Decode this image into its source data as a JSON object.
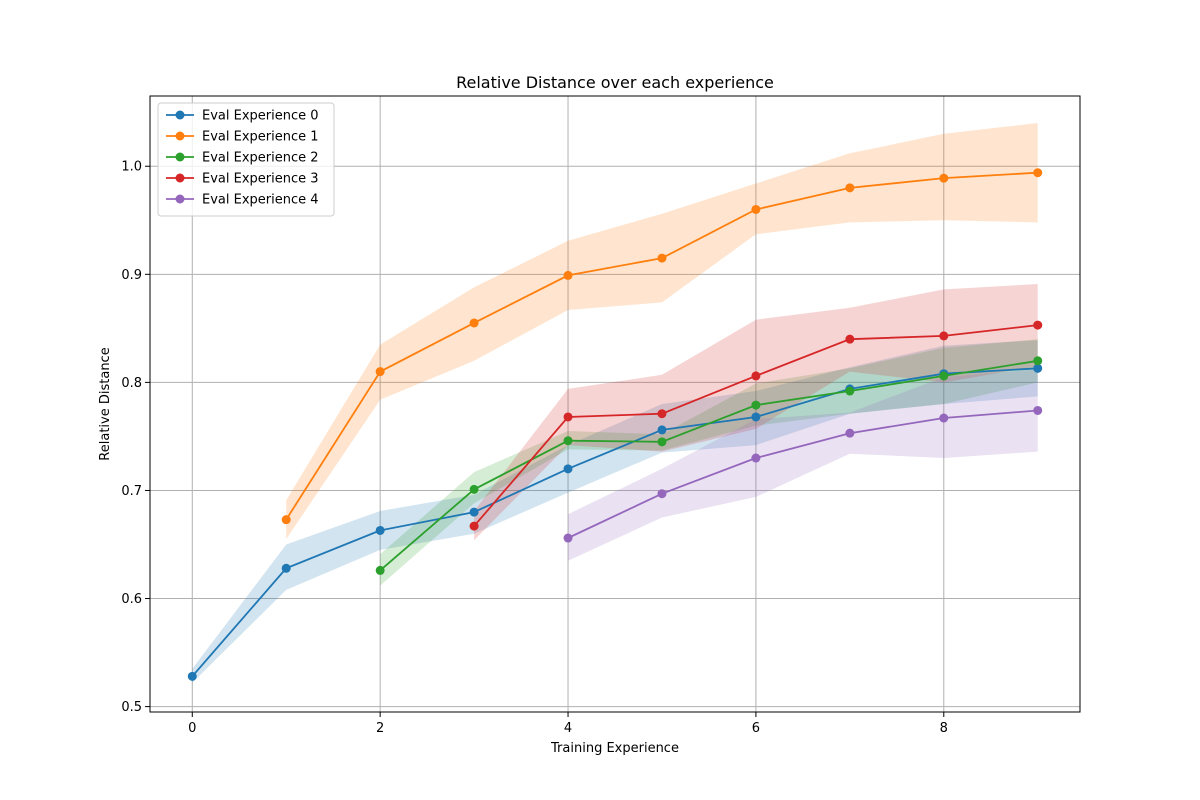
{
  "chart_data": {
    "type": "line",
    "title": "Relative Distance over each experience",
    "xlabel": "Training Experience",
    "ylabel": "Relative Distance",
    "xlim": [
      -0.45,
      9.45
    ],
    "ylim": [
      0.495,
      1.065
    ],
    "xticks": [
      0,
      2,
      4,
      6,
      8
    ],
    "yticks": [
      0.5,
      0.6,
      0.7,
      0.8,
      0.9,
      1.0
    ],
    "xtick_labels": [
      "0",
      "2",
      "4",
      "6",
      "8"
    ],
    "ytick_labels": [
      "0.5",
      "0.6",
      "0.7",
      "0.8",
      "0.9",
      "1.0"
    ],
    "grid": true,
    "legend_position": "upper-left",
    "series": [
      {
        "name": "Eval Experience 0",
        "color": "#1f77b4",
        "x": [
          0,
          1,
          2,
          3,
          4,
          5,
          6,
          7,
          8,
          9
        ],
        "y": [
          0.528,
          0.628,
          0.663,
          0.68,
          0.72,
          0.756,
          0.768,
          0.794,
          0.808,
          0.813
        ],
        "lower": [
          0.522,
          0.608,
          0.645,
          0.66,
          0.698,
          0.735,
          0.742,
          0.771,
          0.78,
          0.787
        ],
        "upper": [
          0.535,
          0.65,
          0.681,
          0.696,
          0.742,
          0.78,
          0.792,
          0.814,
          0.834,
          0.839
        ]
      },
      {
        "name": "Eval Experience 1",
        "color": "#ff7f0e",
        "x": [
          1,
          2,
          3,
          4,
          5,
          6,
          7,
          8,
          9
        ],
        "y": [
          0.673,
          0.81,
          0.855,
          0.899,
          0.915,
          0.96,
          0.98,
          0.989,
          0.994
        ],
        "lower": [
          0.655,
          0.784,
          0.82,
          0.867,
          0.874,
          0.937,
          0.948,
          0.95,
          0.948
        ],
        "upper": [
          0.691,
          0.835,
          0.888,
          0.931,
          0.956,
          0.984,
          1.012,
          1.03,
          1.04
        ]
      },
      {
        "name": "Eval Experience 2",
        "color": "#2ca02c",
        "x": [
          2,
          3,
          4,
          5,
          6,
          7,
          8,
          9
        ],
        "y": [
          0.626,
          0.701,
          0.746,
          0.745,
          0.779,
          0.792,
          0.806,
          0.82
        ],
        "lower": [
          0.612,
          0.688,
          0.738,
          0.737,
          0.76,
          0.771,
          0.78,
          0.8
        ],
        "upper": [
          0.641,
          0.717,
          0.755,
          0.752,
          0.799,
          0.813,
          0.832,
          0.84
        ]
      },
      {
        "name": "Eval Experience 3",
        "color": "#d62728",
        "x": [
          3,
          4,
          5,
          6,
          7,
          8,
          9
        ],
        "y": [
          0.667,
          0.768,
          0.771,
          0.806,
          0.84,
          0.843,
          0.853
        ],
        "lower": [
          0.654,
          0.742,
          0.736,
          0.757,
          0.81,
          0.8,
          0.815
        ],
        "upper": [
          0.681,
          0.794,
          0.807,
          0.858,
          0.869,
          0.886,
          0.891
        ]
      },
      {
        "name": "Eval Experience 4",
        "color": "#9467bd",
        "x": [
          4,
          5,
          6,
          7,
          8,
          9
        ],
        "y": [
          0.656,
          0.697,
          0.73,
          0.753,
          0.767,
          0.774
        ],
        "lower": [
          0.635,
          0.675,
          0.694,
          0.734,
          0.73,
          0.736
        ],
        "upper": [
          0.678,
          0.72,
          0.766,
          0.772,
          0.805,
          0.812
        ]
      }
    ]
  }
}
